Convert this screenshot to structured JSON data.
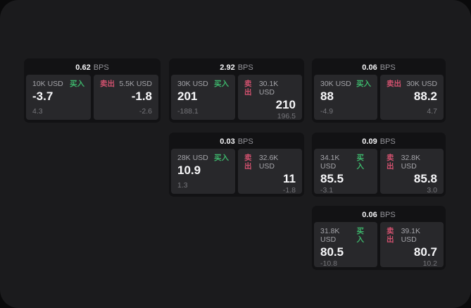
{
  "labels": {
    "buy": "买入",
    "sell": "卖出",
    "bps_unit": "BPS"
  },
  "colors": {
    "buy": "#3db56b",
    "sell": "#d1516e",
    "surface": "#1b1b1d",
    "card": "#121214",
    "panel": "#28282b"
  },
  "cards": [
    {
      "bps": "0.62",
      "buy": {
        "amount": "10K USD",
        "price": "-3.7",
        "delta": "4.3"
      },
      "sell": {
        "amount": "5.5K USD",
        "price": "-1.8",
        "delta": "-2.6"
      }
    },
    {
      "bps": "2.92",
      "buy": {
        "amount": "30K USD",
        "price": "201",
        "delta": "-188.1"
      },
      "sell": {
        "amount": "30.1K USD",
        "price": "210",
        "delta": "196.5"
      }
    },
    {
      "bps": "0.06",
      "buy": {
        "amount": "30K USD",
        "price": "88",
        "delta": "-4.9"
      },
      "sell": {
        "amount": "30K USD",
        "price": "88.2",
        "delta": "4.7"
      }
    },
    {
      "bps": "0.03",
      "buy": {
        "amount": "28K USD",
        "price": "10.9",
        "delta": "1.3"
      },
      "sell": {
        "amount": "32.6K USD",
        "price": "11",
        "delta": "-1.8"
      }
    },
    {
      "bps": "0.09",
      "buy": {
        "amount": "34.1K USD",
        "price": "85.5",
        "delta": "-3.1"
      },
      "sell": {
        "amount": "32.8K USD",
        "price": "85.8",
        "delta": "3.0"
      }
    },
    {
      "bps": "0.06",
      "buy": {
        "amount": "31.8K USD",
        "price": "80.5",
        "delta": "-10.8"
      },
      "sell": {
        "amount": "39.1K USD",
        "price": "80.7",
        "delta": "10.2"
      }
    }
  ]
}
